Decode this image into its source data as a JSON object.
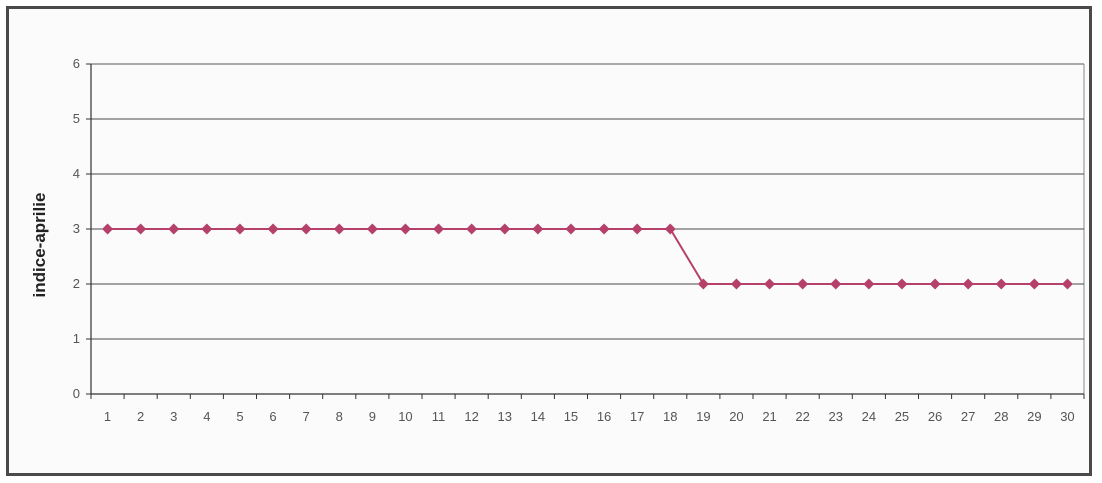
{
  "chart_data": {
    "type": "line",
    "title": "",
    "xlabel": "",
    "ylabel": "indice-aprilie",
    "x": [
      1,
      2,
      3,
      4,
      5,
      6,
      7,
      8,
      9,
      10,
      11,
      12,
      13,
      14,
      15,
      16,
      17,
      18,
      19,
      20,
      21,
      22,
      23,
      24,
      25,
      26,
      27,
      28,
      29,
      30
    ],
    "categories": [
      "1",
      "2",
      "3",
      "4",
      "5",
      "6",
      "7",
      "8",
      "9",
      "10",
      "11",
      "12",
      "13",
      "14",
      "15",
      "16",
      "17",
      "18",
      "19",
      "20",
      "21",
      "22",
      "23",
      "24",
      "25",
      "26",
      "27",
      "28",
      "29",
      "30"
    ],
    "series": [
      {
        "values": [
          3,
          3,
          3,
          3,
          3,
          3,
          3,
          3,
          3,
          3,
          3,
          3,
          3,
          3,
          3,
          3,
          3,
          3,
          2,
          2,
          2,
          2,
          2,
          2,
          2,
          2,
          2,
          2,
          2,
          2
        ],
        "color": "#b5416a",
        "marker": "diamond"
      }
    ],
    "ylim": [
      0,
      6
    ],
    "yticks": [
      "0",
      "1",
      "2",
      "3",
      "4",
      "5",
      "6"
    ],
    "grid": "horizontal",
    "legend": "none"
  }
}
